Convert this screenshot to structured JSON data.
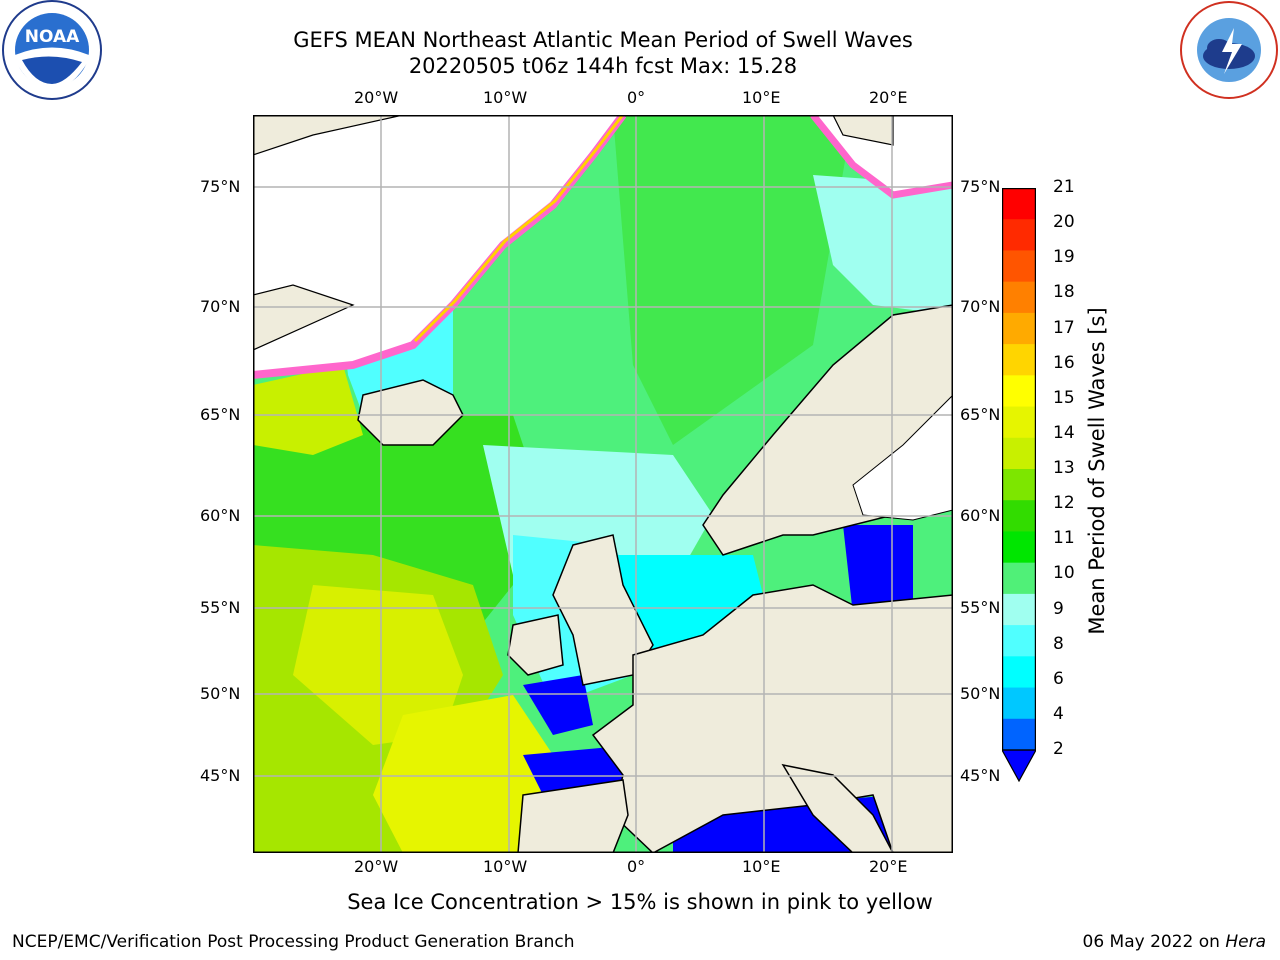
{
  "title": {
    "line1": "GEFS MEAN Northeast Atlantic Mean Period of Swell Waves",
    "line2": "20220505 t06z 144h fcst   Max: 15.28"
  },
  "map": {
    "lon_ticks": [
      "20°W",
      "10°W",
      "0°",
      "10°E",
      "20°E"
    ],
    "lat_ticks": [
      "75°N",
      "70°N",
      "65°N",
      "60°N",
      "55°N",
      "50°N",
      "45°N"
    ],
    "land_color": "#efecdc",
    "grid_color": "#b4b4b4"
  },
  "colorbar": {
    "label": "Mean Period of Swell Waves [s]",
    "ticks": [
      "21",
      "20",
      "19",
      "18",
      "17",
      "16",
      "15",
      "14",
      "13",
      "12",
      "11",
      "10",
      "9",
      "8",
      "6",
      "4",
      "2"
    ],
    "colors": [
      "#ff0000",
      "#ff2a00",
      "#ff5500",
      "#ff8000",
      "#ffaa00",
      "#ffd500",
      "#ffff00",
      "#e6f500",
      "#c8f000",
      "#7de600",
      "#32dc00",
      "#00e600",
      "#50f078",
      "#a0fff0",
      "#50ffff",
      "#00ffff",
      "#00c8ff",
      "#0064ff"
    ],
    "under_color": "#0000ff"
  },
  "annotation": "Sea Ice Concentration > 15% is shown in pink to yellow",
  "footer": {
    "left": "NCEP/EMC/Verification Post Processing Product Generation Branch",
    "right_date": "06 May 2022 on",
    "right_host": "Hera"
  },
  "logos": {
    "left": "NOAA",
    "right": "NATIONAL WEATHER SERVICE"
  }
}
